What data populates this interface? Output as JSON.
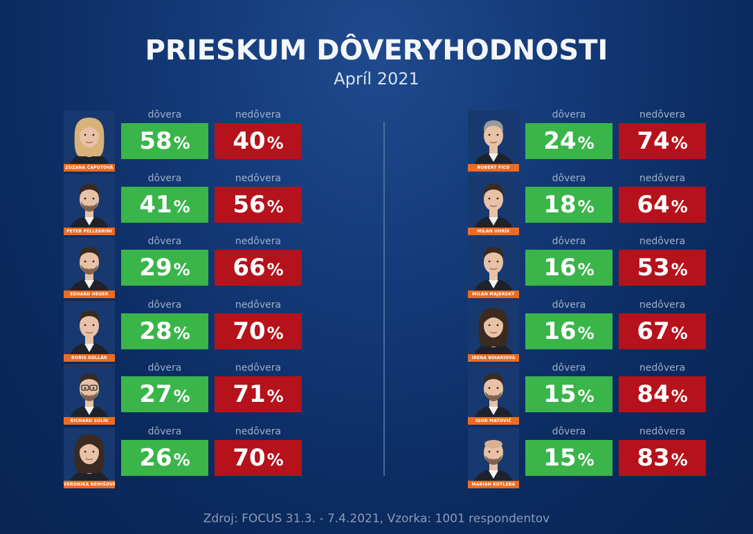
{
  "colors": {
    "trust": "#3ab54a",
    "distrust": "#b5121b",
    "name_tag": "#ee6b1f"
  },
  "chart_data": {
    "type": "table",
    "title": "PRIESKUM DÔVERYHODNOSTI",
    "subtitle": "Apríl 2021",
    "column_labels": {
      "trust": "dôvera",
      "distrust": "nedôvera"
    },
    "percent_sign": "%",
    "left": [
      {
        "name": "ZUZANA ČAPUTOVÁ",
        "trust": "58",
        "distrust": "40",
        "photo": "woman-blonde-icon"
      },
      {
        "name": "PETER PELLEGRINI",
        "trust": "41",
        "distrust": "56",
        "photo": "man-beard-icon"
      },
      {
        "name": "EDUARD HEGER",
        "trust": "29",
        "distrust": "66",
        "photo": "man-beard-icon"
      },
      {
        "name": "BORIS KOLLÁR",
        "trust": "28",
        "distrust": "70",
        "photo": "man-portrait-icon"
      },
      {
        "name": "RICHARD SULÍK",
        "trust": "27",
        "distrust": "71",
        "photo": "man-glasses-icon"
      },
      {
        "name": "VERONIKA REMIŠOVÁ",
        "trust": "26",
        "distrust": "70",
        "photo": "woman-dark-hair-icon"
      }
    ],
    "right": [
      {
        "name": "ROBERT FICO",
        "trust": "24",
        "distrust": "74",
        "photo": "man-grey-hair-icon"
      },
      {
        "name": "MILAN UHRÍK",
        "trust": "18",
        "distrust": "64",
        "photo": "man-portrait-icon"
      },
      {
        "name": "MILAN MAJERSKÝ",
        "trust": "16",
        "distrust": "53",
        "photo": "man-portrait-icon"
      },
      {
        "name": "IRENA BIHARIOVÁ",
        "trust": "16",
        "distrust": "67",
        "photo": "woman-dark-hair-icon"
      },
      {
        "name": "IGOR MATOVIČ",
        "trust": "15",
        "distrust": "84",
        "photo": "man-beard-icon"
      },
      {
        "name": "MARIAN KOTLEBA",
        "trust": "15",
        "distrust": "83",
        "photo": "man-bald-icon"
      }
    ]
  },
  "source": "Zdroj: FOCUS 31.3. - 7.4.2021, Vzorka: 1001 respondentov"
}
